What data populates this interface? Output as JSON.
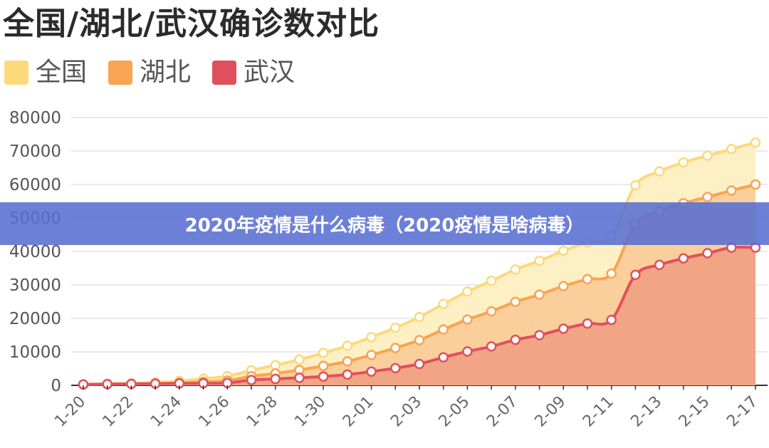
{
  "banner": {
    "text": "2020年疫情是什么病毒（2020疫情是啥病毒）"
  },
  "chart_data": {
    "type": "area",
    "title": "全国/湖北/武汉确诊数对比",
    "xlabel": "",
    "ylabel": "",
    "ylim": [
      0,
      80000
    ],
    "yticks": [
      0,
      10000,
      20000,
      30000,
      40000,
      50000,
      60000,
      70000,
      80000
    ],
    "grid": true,
    "legend": "top-left",
    "x": [
      "1-20",
      "1-21",
      "1-22",
      "1-23",
      "1-24",
      "1-25",
      "1-26",
      "1-27",
      "1-28",
      "1-29",
      "1-30",
      "1-31",
      "2-01",
      "2-02",
      "2-03",
      "2-04",
      "2-05",
      "2-06",
      "2-07",
      "2-08",
      "2-09",
      "2-10",
      "2-11",
      "2-12",
      "2-13",
      "2-14",
      "2-15",
      "2-16",
      "2-17"
    ],
    "xtick_labels": [
      "1-20",
      "1-22",
      "1-24",
      "1-26",
      "1-28",
      "1-30",
      "2-01",
      "2-03",
      "2-05",
      "2-07",
      "2-09",
      "2-11",
      "2-13",
      "2-15",
      "2-17"
    ],
    "series": [
      {
        "name": "全国",
        "color": "#fcd97a",
        "fill": "#fdf0c4",
        "values": [
          300,
          450,
          600,
          850,
          1300,
          2000,
          2750,
          4500,
          6000,
          7700,
          9700,
          11800,
          14400,
          17200,
          20400,
          24300,
          28000,
          31200,
          34600,
          37200,
          40200,
          42700,
          44700,
          59800,
          63900,
          66600,
          68600,
          70600,
          72500
        ]
      },
      {
        "name": "湖北",
        "color": "#f8a452",
        "fill": "#fbcf9b",
        "values": [
          270,
          375,
          444,
          549,
          729,
          1052,
          1423,
          2714,
          3554,
          4586,
          5806,
          7153,
          9074,
          11177,
          13522,
          16678,
          19665,
          22112,
          24953,
          27100,
          29631,
          31728,
          33366,
          48206,
          51986,
          54406,
          56249,
          58182,
          59989
        ]
      },
      {
        "name": "武汉",
        "color": "#e0505c",
        "fill": "#f2a585",
        "values": [
          258,
          363,
          425,
          495,
          572,
          618,
          698,
          1590,
          1905,
          2261,
          2639,
          3215,
          4109,
          5142,
          6384,
          8351,
          10117,
          11618,
          13603,
          14982,
          16902,
          18454,
          19558,
          32994,
          35991,
          37914,
          39462,
          41152,
          41152
        ]
      }
    ]
  }
}
